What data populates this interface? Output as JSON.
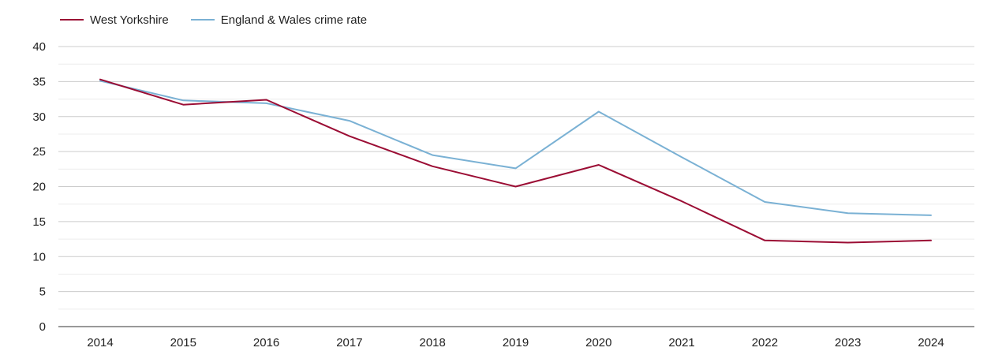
{
  "chart_data": {
    "type": "line",
    "title": "",
    "xlabel": "",
    "ylabel": "",
    "x": [
      "2014",
      "2015",
      "2016",
      "2017",
      "2018",
      "2019",
      "2020",
      "2021",
      "2022",
      "2023",
      "2024"
    ],
    "ylim": [
      0,
      40
    ],
    "yticks": [
      "0",
      "5",
      "10",
      "15",
      "20",
      "25",
      "30",
      "35",
      "40"
    ],
    "grid": true,
    "legend_position": "top-left",
    "series": [
      {
        "name": "West Yorkshire",
        "color": "#9b0d34",
        "values": [
          35.3,
          31.7,
          32.4,
          27.2,
          22.9,
          20.0,
          23.1,
          17.9,
          12.3,
          12.0,
          12.3
        ]
      },
      {
        "name": "England & Wales crime rate",
        "color": "#7ab1d4",
        "values": [
          35.1,
          32.3,
          31.9,
          29.4,
          24.5,
          22.6,
          30.7,
          24.2,
          17.8,
          16.2,
          15.9
        ]
      }
    ]
  }
}
